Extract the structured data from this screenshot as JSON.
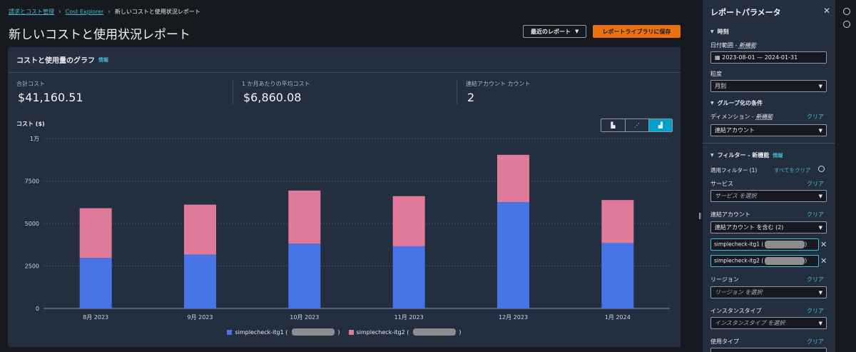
{
  "breadcrumb": {
    "item1": "請求とコスト管理",
    "item2": "Cost Explorer",
    "current": "新しいコストと使用状況レポート"
  },
  "page_title": "新しいコストと使用状況レポート",
  "buttons": {
    "recent_reports": "最近のレポート",
    "save_to_library": "レポートライブラリに保存"
  },
  "card": {
    "title": "コストと使用量のグラフ",
    "info": "情報"
  },
  "metrics": [
    {
      "label": "合計コスト",
      "value": "$41,160.51"
    },
    {
      "label": "1 か月あたりの平均コスト",
      "value": "$6,860.08"
    },
    {
      "label": "連結アカウント カウント",
      "value": "2"
    }
  ],
  "colors": {
    "series1": "#4775e6",
    "series2": "#e07a9a",
    "accent": "#ec7211",
    "link": "#44b9d6"
  },
  "chart_data": {
    "type": "bar",
    "stacked": true,
    "ylabel": "コスト ($)",
    "ylim": [
      0,
      10000
    ],
    "yticks": [
      0,
      2500,
      5000,
      7500,
      10000
    ],
    "ytick_labels": [
      "0",
      "2500",
      "5000",
      "7500",
      "1万"
    ],
    "categories": [
      "8月 2023",
      "9月 2023",
      "10月 2023",
      "11月 2023",
      "12月 2023",
      "1月 2024"
    ],
    "series": [
      {
        "name": "simplecheck-itg1 (",
        "values": [
          2970,
          3170,
          3810,
          3660,
          6260,
          3850
        ]
      },
      {
        "name": "simplecheck-itg2 (",
        "values": [
          2930,
          2940,
          3130,
          2950,
          2780,
          2530
        ]
      }
    ],
    "legend_position": "bottom"
  },
  "panel": {
    "title": "レポートパラメータ",
    "time_section": "時刻",
    "date_range_label": "日付範囲",
    "new_feature": "新機能",
    "date_range_value": "2023-08-01 — 2024-01-31",
    "granularity_label": "粒度",
    "granularity_value": "月別",
    "group_section": "グループ化の条件",
    "dimension_label": "ディメンション",
    "dimension_value": "連結アカウント",
    "clear": "クリア",
    "filter_section": "フィルター",
    "filter_info": "情報",
    "applied_filters": "適用フィルター (1)",
    "clear_all": "すべてをクリア",
    "service_label": "サービス",
    "service_placeholder": "サービス を選択",
    "linked_label": "連結アカウント",
    "linked_value": "連結アカウント を含む (2)",
    "token1": "simplecheck-itg1 (",
    "token2": "simplecheck-itg2 (",
    "region_label": "リージョン",
    "region_placeholder": "リージョン を選択",
    "instance_label": "インスタンスタイプ",
    "instance_placeholder": "インスタンスタイプ を選択",
    "usage_label": "使用タイプ"
  }
}
